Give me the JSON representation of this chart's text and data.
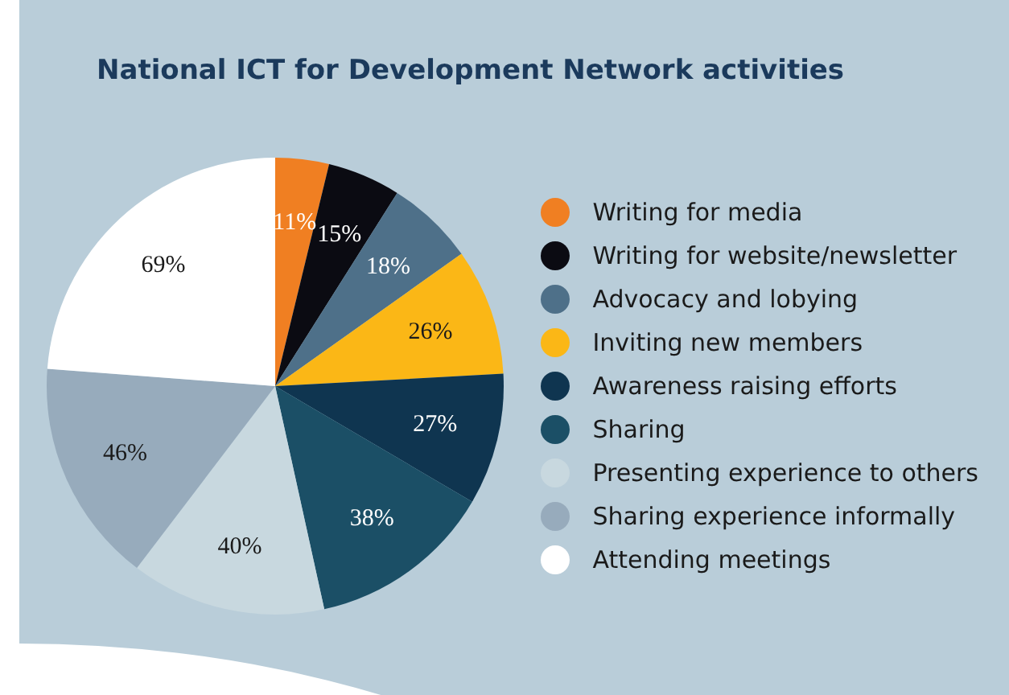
{
  "chart_data": {
    "type": "pie",
    "title": "National ICT for Development Network activities",
    "categories": [
      "Writing for media",
      "Writing for website/newsletter",
      "Advocacy and lobying",
      "Inviting new members",
      "Awareness raising efforts",
      "Sharing",
      "Presenting experience to others",
      "Sharing experience informally",
      "Attending meetings"
    ],
    "values": [
      11,
      15,
      18,
      26,
      27,
      38,
      40,
      46,
      69
    ],
    "colors": [
      "#f07f22",
      "#0b0b12",
      "#4e7089",
      "#fbb716",
      "#0f3550",
      "#1b4f66",
      "#c8d8df",
      "#97abbc",
      "#ffffff"
    ],
    "value_labels": [
      "11%",
      "15%",
      "18%",
      "26%",
      "27%",
      "38%",
      "40%",
      "46%",
      "69%"
    ],
    "legend": "right"
  }
}
